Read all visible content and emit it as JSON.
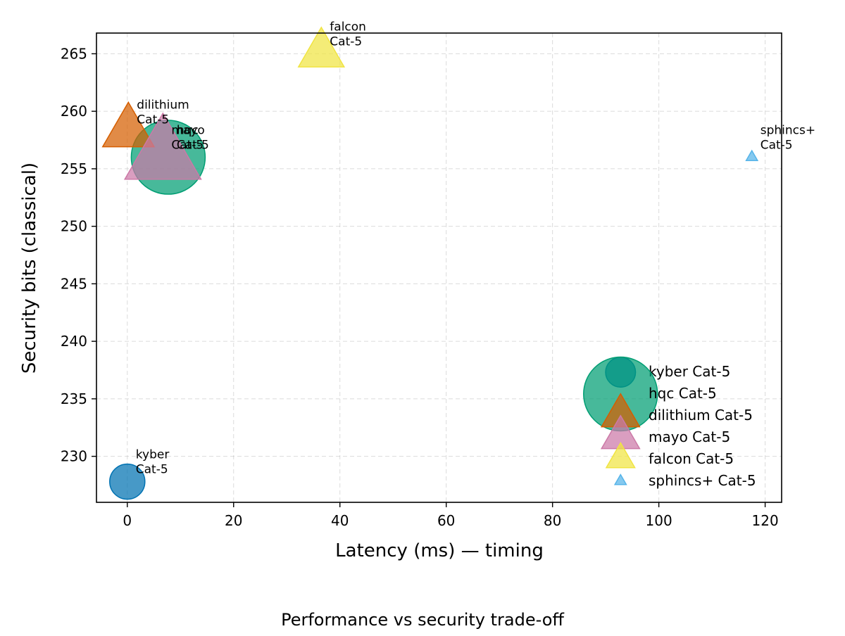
{
  "chart_data": {
    "type": "scatter",
    "title": "Performance vs security trade-off",
    "xlabel": "Latency (ms) — timing",
    "ylabel": "Security bits (classical)",
    "xlim": [
      -5.8,
      123.1
    ],
    "ylim": [
      226.0,
      266.8
    ],
    "xticks": [
      0,
      20,
      40,
      60,
      80,
      100,
      120
    ],
    "yticks": [
      230,
      235,
      240,
      245,
      250,
      255,
      260,
      265
    ],
    "grid": true,
    "legend_position": "lower-right",
    "points": [
      {
        "name": "kyber",
        "label_line1": "kyber",
        "label_line2": "Cat-5",
        "x": 0.0,
        "y": 227.8,
        "marker": "circle",
        "size": 1.0,
        "color": "#0072B2"
      },
      {
        "name": "hqc",
        "label_line1": "hqc",
        "label_line2": "Cat-5",
        "x": 7.7,
        "y": 256.0,
        "marker": "circle",
        "size": 2.1,
        "color": "#009E73"
      },
      {
        "name": "dilithium",
        "label_line1": "dilithium",
        "label_line2": "Cat-5",
        "x": 0.2,
        "y": 258.2,
        "marker": "triangle",
        "size": 1.35,
        "color": "#D55E00"
      },
      {
        "name": "mayo",
        "label_line1": "mayo",
        "label_line2": "Cat-5",
        "x": 6.7,
        "y": 256.0,
        "marker": "triangle",
        "size": 2.0,
        "color": "#CC79A7"
      },
      {
        "name": "falcon",
        "label_line1": "falcon",
        "label_line2": "Cat-5",
        "x": 36.5,
        "y": 265.0,
        "marker": "triangle",
        "size": 1.2,
        "color": "#F0E442"
      },
      {
        "name": "sphincs+",
        "label_line1": "sphincs+",
        "label_line2": "Cat-5",
        "x": 117.5,
        "y": 256.0,
        "marker": "triangle",
        "size": 0.3,
        "color": "#56B4E9"
      }
    ],
    "legend": [
      {
        "label": "kyber Cat-5",
        "marker": "circle",
        "color": "#0072B2",
        "size": 0.85
      },
      {
        "label": "hqc Cat-5",
        "marker": "circle",
        "color": "#009E73",
        "size": 2.1
      },
      {
        "label": "dilithium Cat-5",
        "marker": "triangle",
        "color": "#D55E00",
        "size": 1.0
      },
      {
        "label": "mayo Cat-5",
        "marker": "triangle",
        "color": "#CC79A7",
        "size": 1.0
      },
      {
        "label": "falcon Cat-5",
        "marker": "triangle",
        "color": "#F0E442",
        "size": 0.75
      },
      {
        "label": "sphincs+ Cat-5",
        "marker": "triangle",
        "color": "#56B4E9",
        "size": 0.3
      }
    ]
  }
}
